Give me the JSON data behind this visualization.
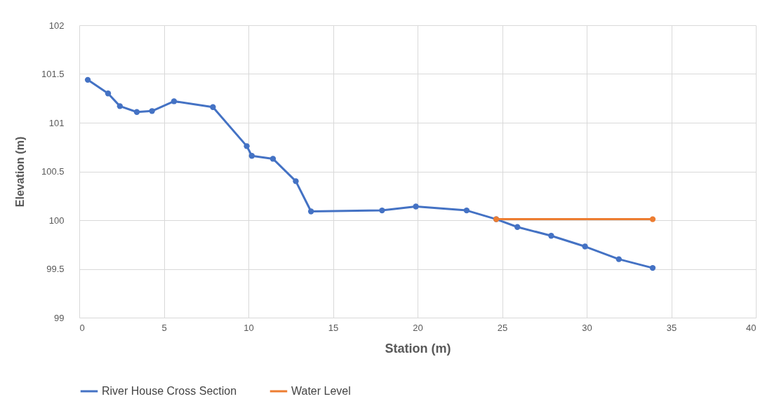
{
  "chart_data": {
    "type": "line",
    "xlabel": "Station (m)",
    "ylabel": "Elevation (m)",
    "series": [
      {
        "name": "River House Cross Section",
        "color": "#4472c4",
        "x": [
          0.5,
          1.7,
          2.4,
          3.4,
          4.3,
          5.6,
          7.9,
          9.9,
          10.2,
          11.45,
          12.8,
          13.7,
          17.9,
          19.9,
          22.9,
          24.65,
          25.9,
          27.9,
          29.9,
          31.9,
          33.9
        ],
        "values": [
          101.44,
          101.3,
          101.17,
          101.11,
          101.12,
          101.22,
          101.16,
          100.76,
          100.66,
          100.63,
          100.4,
          100.09,
          100.1,
          100.14,
          100.1,
          100.01,
          99.93,
          99.84,
          99.73,
          99.6,
          99.51
        ]
      },
      {
        "name": "Water Level",
        "color": "#ed7d31",
        "x": [
          24.65,
          33.9
        ],
        "values": [
          100.01,
          100.01
        ]
      }
    ],
    "xlim": [
      0,
      40
    ],
    "xticks": [
      0,
      5,
      10,
      15,
      20,
      25,
      30,
      35,
      40
    ],
    "ylim": [
      99,
      102
    ],
    "yticks": [
      99,
      99.5,
      100,
      100.5,
      101,
      101.5,
      102
    ],
    "grid": true,
    "legend": "bottom",
    "marker": "circle",
    "line_style": "solid"
  }
}
